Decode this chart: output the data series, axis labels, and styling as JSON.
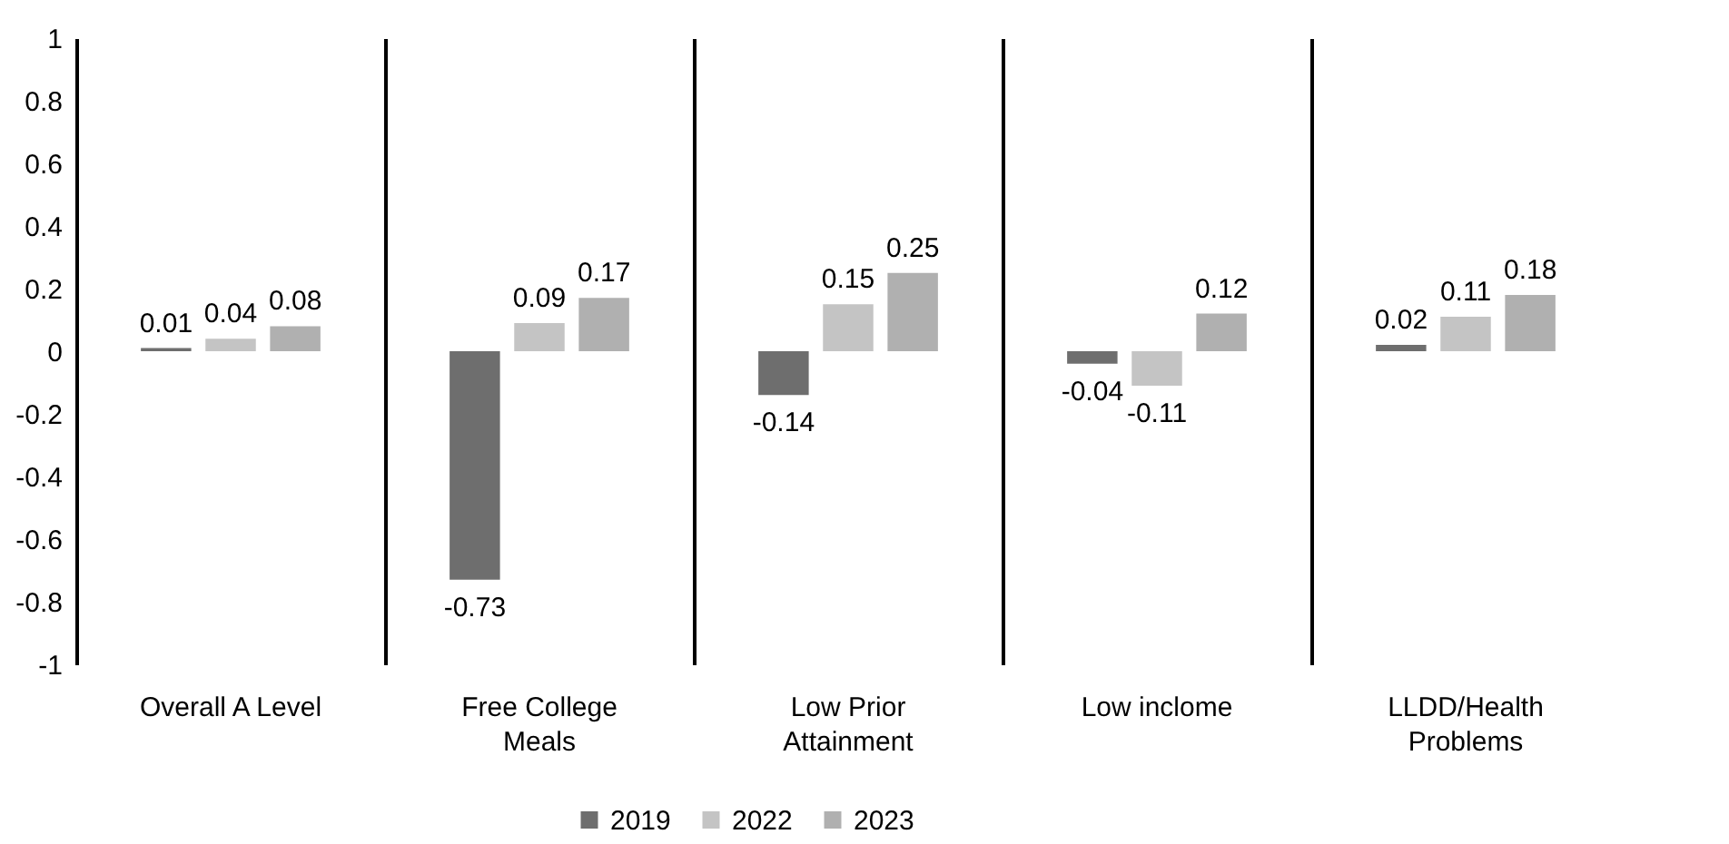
{
  "chart_data": {
    "type": "bar",
    "categories": [
      "Overall A Level",
      "Free College Meals",
      "Low Prior Attainment",
      "Low inclome",
      "LLDD/Health Problems"
    ],
    "series": [
      {
        "name": "2019",
        "color": "#6e6e6e",
        "values": [
          0.01,
          -0.73,
          -0.14,
          -0.04,
          0.02
        ]
      },
      {
        "name": "2022",
        "color": "#c4c4c4",
        "values": [
          0.04,
          0.09,
          0.15,
          -0.11,
          0.11
        ]
      },
      {
        "name": "2023",
        "color": "#b0b0b0",
        "values": [
          0.08,
          0.17,
          0.25,
          0.12,
          0.18
        ]
      }
    ],
    "ylim": [
      -1,
      1
    ],
    "yticks": [
      -1,
      -0.8,
      -0.6,
      -0.4,
      -0.2,
      0,
      0.2,
      0.4,
      0.6,
      0.8,
      1
    ],
    "data_labels": true,
    "grid": "x",
    "legend": "bottom"
  }
}
